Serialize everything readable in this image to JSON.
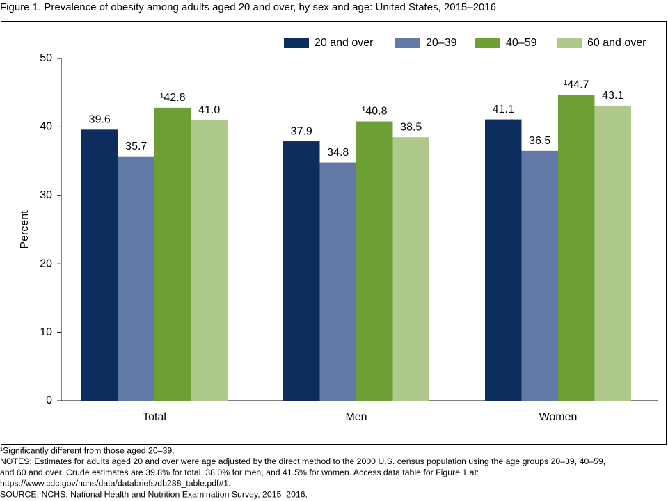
{
  "chart_data": {
    "type": "bar",
    "title": "Figure 1. Prevalence of obesity among adults aged 20 and over, by sex and age: United States, 2015–2016",
    "y_label": "Percent",
    "categories": [
      "Total",
      "Men",
      "Women"
    ],
    "series": [
      {
        "name": "20 and over",
        "color": "#0c2d5e",
        "values": [
          39.6,
          37.9,
          41.1
        ],
        "value_labels": [
          "39.6",
          "37.9",
          "41.1"
        ]
      },
      {
        "name": "20–39",
        "color": "#6379a5",
        "values": [
          35.7,
          34.8,
          36.5
        ],
        "value_labels": [
          "35.7",
          "34.8",
          "36.5"
        ]
      },
      {
        "name": "40–59",
        "color": "#6d9f35",
        "values": [
          42.8,
          40.8,
          44.7
        ],
        "value_labels": [
          "¹42.8",
          "¹40.8",
          "¹44.7"
        ]
      },
      {
        "name": "60 and over",
        "color": "#afc98c",
        "values": [
          41.0,
          38.5,
          43.1
        ],
        "value_labels": [
          "41.0",
          "38.5",
          "43.1"
        ]
      }
    ],
    "ylim": [
      0,
      50
    ],
    "yticks": [
      0,
      10,
      20,
      30,
      40,
      50
    ],
    "grid": false,
    "legend": "top-right",
    "notes": [
      "¹Significantly different from those aged 20–39.",
      "NOTES: Estimates for adults aged 20 and over were age adjusted by the direct method to the 2000 U.S. census population using the age groups 20–39, 40–59,",
      "and 60 and over. Crude estimates are 39.8% for total, 38.0% for men, and 41.5% for women. Access data table for Figure 1 at:",
      "https://www.cdc.gov/nchs/data/databriefs/db288_table.pdf#1.",
      "SOURCE: NCHS, National Health and Nutrition Examination Survey, 2015–2016."
    ]
  }
}
